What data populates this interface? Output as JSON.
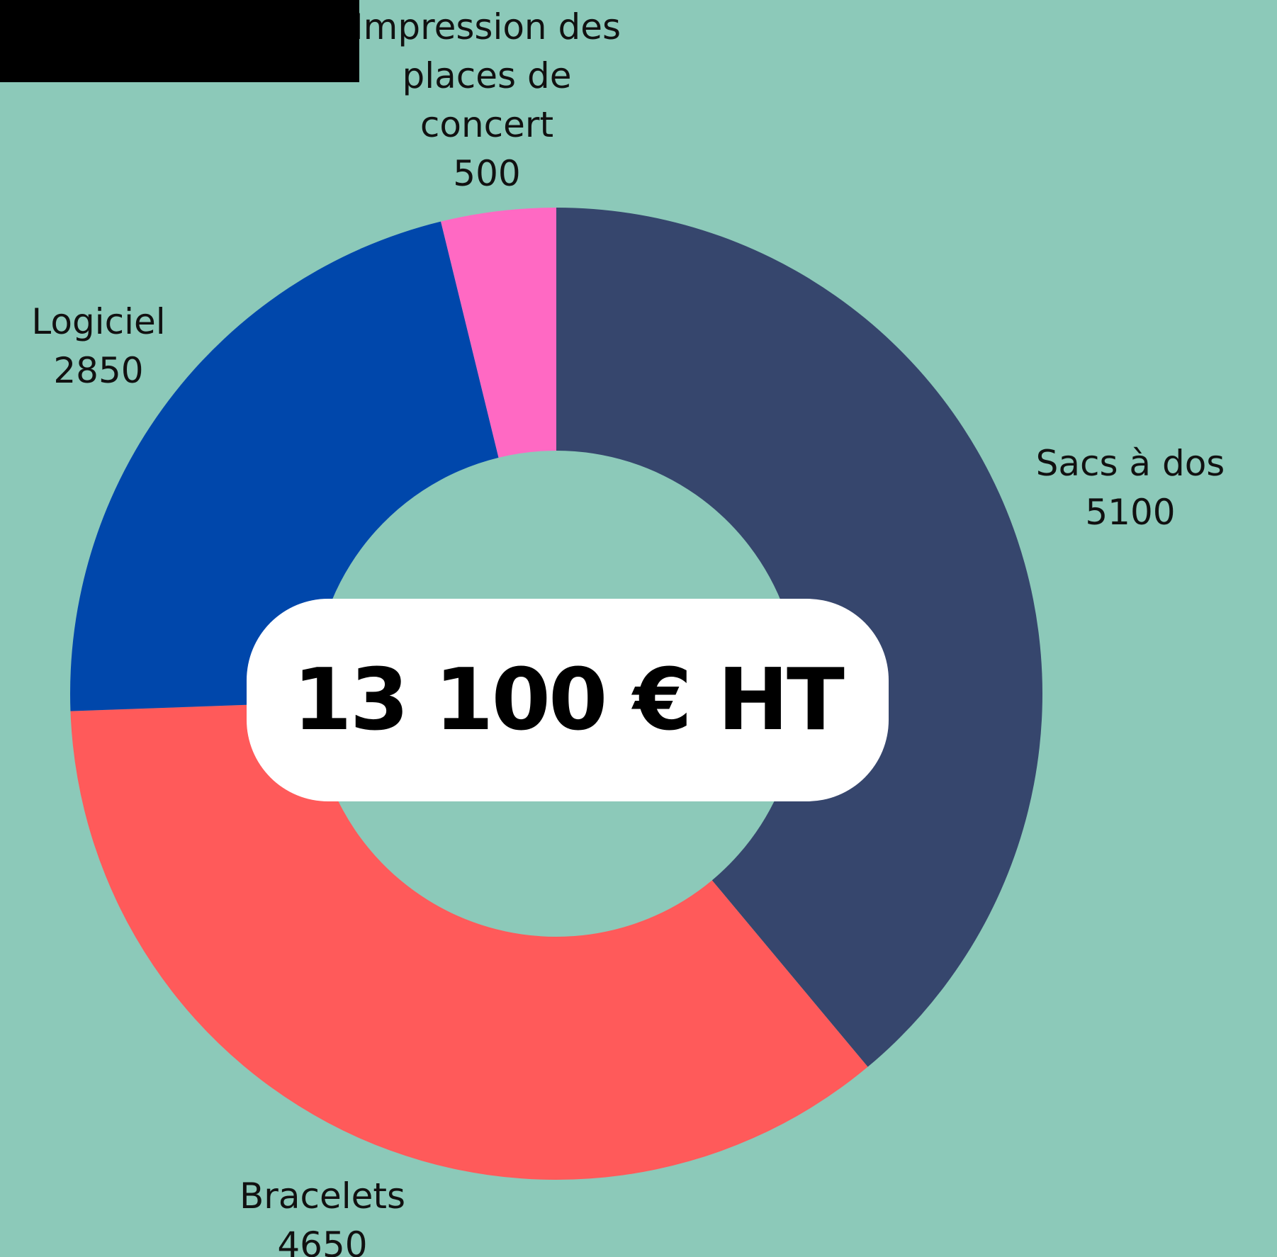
{
  "chart_data": {
    "type": "donut",
    "categories": [
      "Sacs à dos",
      "Bracelets",
      "Logiciel",
      "Impression des places de concert"
    ],
    "values": [
      5100,
      4650,
      2850,
      500
    ],
    "colors": [
      "#36466d",
      "#ff5a5a",
      "#0047ab",
      "#ff69c3"
    ],
    "center_label": "13 100 € HT"
  }
}
